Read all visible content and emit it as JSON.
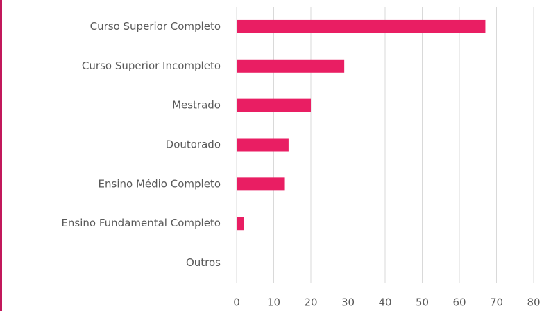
{
  "chart_data": {
    "type": "bar",
    "orientation": "horizontal",
    "categories": [
      "Curso Superior Completo",
      "Curso Superior Incompleto",
      "Mestrado",
      "Doutorado",
      "Ensino Médio Completo",
      "Ensino Fundamental Completo",
      "Outros"
    ],
    "values": [
      67,
      29,
      20,
      14,
      13,
      2,
      0
    ],
    "color": "#e91e63",
    "xlim": [
      0,
      80
    ],
    "xticks": [
      0,
      10,
      20,
      30,
      40,
      50,
      60,
      70,
      80
    ],
    "grid": true
  }
}
